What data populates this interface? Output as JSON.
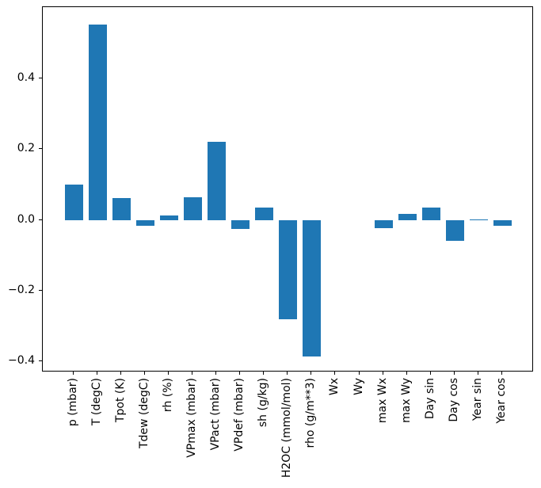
{
  "figure": {
    "background_color": "#ffffff",
    "spine_color": "#000000",
    "tick_color": "#000000",
    "text_color": "#000000"
  },
  "chart_data": {
    "type": "bar",
    "title": "",
    "xlabel": "",
    "ylabel": "",
    "categories": [
      "p (mbar)",
      "T (degC)",
      "Tpot (K)",
      "Tdew (degC)",
      "rh (%)",
      "VPmax (mbar)",
      "VPact (mbar)",
      "VPdef (mbar)",
      "sh (g/kg)",
      "H2OC (mmol/mol)",
      "rho (g/m**3)",
      "Wx",
      "Wy",
      "max Wx",
      "max Wy",
      "Day sin",
      "Day cos",
      "Year sin",
      "Year cos"
    ],
    "values": [
      0.099,
      0.552,
      0.062,
      -0.016,
      0.012,
      0.065,
      0.22,
      -0.025,
      0.034,
      -0.281,
      -0.387,
      0.0,
      0.0,
      -0.024,
      0.017,
      0.035,
      -0.06,
      0.002,
      -0.017
    ],
    "bar_color": "#1f77b4",
    "yticks": [
      -0.4,
      -0.2,
      0.0,
      0.2,
      0.4
    ],
    "ylim": [
      -0.431,
      0.602
    ],
    "grid": false,
    "legend": null,
    "x_tick_rotation_deg": 90
  }
}
